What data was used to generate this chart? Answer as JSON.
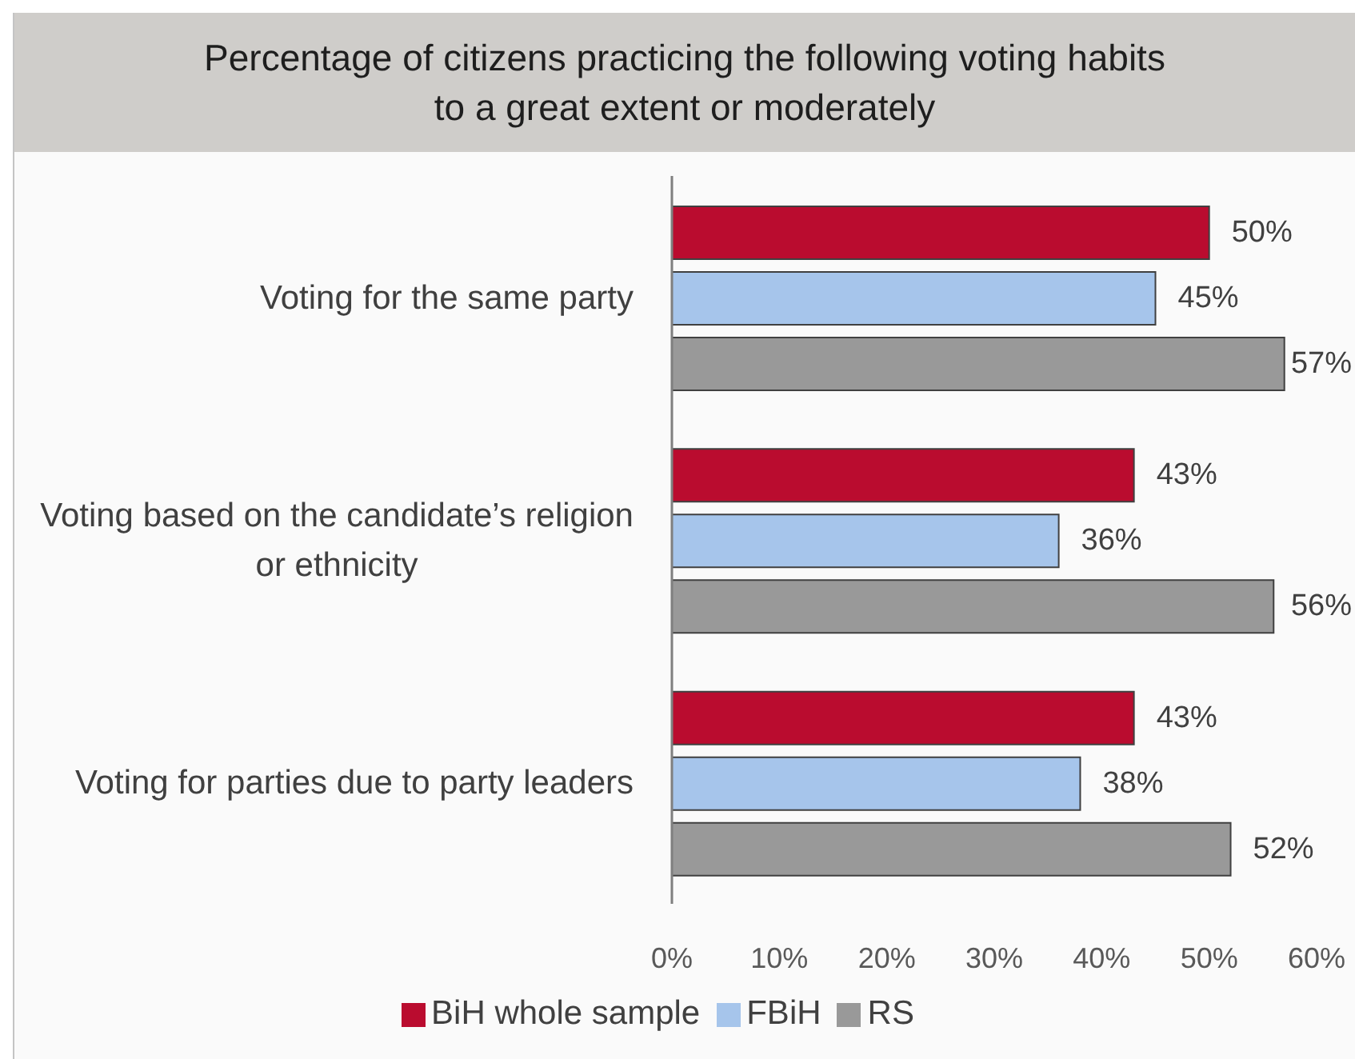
{
  "chart_data": {
    "type": "bar",
    "title": "Percentage of citizens practicing the following voting habits to a great extent or moderately",
    "orientation": "horizontal",
    "categories": [
      "Voting for the same party",
      "Voting based on the candidate’s religion or ethnicity",
      "Voting for parties due to party leaders"
    ],
    "series": [
      {
        "name": "BiH whole sample",
        "color": "#ba0c2f",
        "values": [
          50,
          43,
          43
        ],
        "value_labels": [
          "50%",
          "43%",
          "43%"
        ]
      },
      {
        "name": "FBiH",
        "color": "#a6c5eb",
        "values": [
          45,
          36,
          38
        ],
        "value_labels": [
          "45%",
          "36%",
          "38%"
        ]
      },
      {
        "name": "RS",
        "color": "#999999",
        "values": [
          57,
          56,
          52
        ],
        "value_labels": [
          "57%",
          "56%",
          "52%"
        ]
      }
    ],
    "xlim": [
      0,
      60
    ],
    "xticks": [
      {
        "value": 0,
        "label": "0%"
      },
      {
        "value": 10,
        "label": "10%"
      },
      {
        "value": 20,
        "label": "20%"
      },
      {
        "value": 30,
        "label": "30%"
      },
      {
        "value": 40,
        "label": "40%"
      },
      {
        "value": 50,
        "label": "50%"
      },
      {
        "value": 60,
        "label": "60%"
      }
    ],
    "legend": "bottom"
  }
}
